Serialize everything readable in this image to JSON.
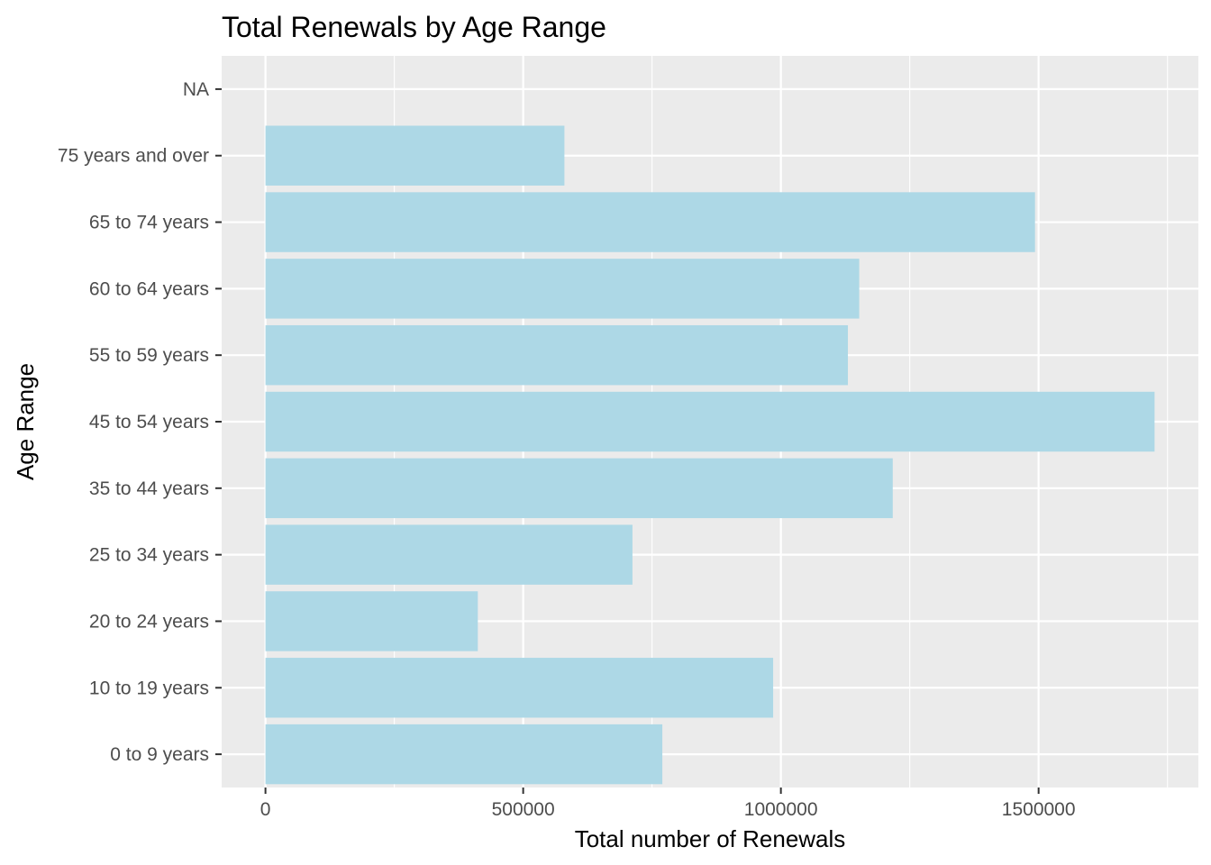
{
  "chart_data": {
    "type": "bar",
    "orientation": "horizontal",
    "title": "Total Renewals by Age Range",
    "xlabel": "Total number of Renewals",
    "ylabel": "Age Range",
    "categories": [
      "0 to 9 years",
      "10 to 19 years",
      "20 to 24 years",
      "25 to 34 years",
      "35 to 44 years",
      "45 to 54 years",
      "55 to 59 years",
      "60 to 64 years",
      "65 to 74 years",
      "75 years and over",
      "NA"
    ],
    "values": [
      770000,
      985000,
      412000,
      712000,
      1217000,
      1725000,
      1130000,
      1152000,
      1493000,
      580000,
      null
    ],
    "xlim": [
      -85000,
      1810000
    ],
    "xticks": [
      0,
      500000,
      1000000,
      1500000
    ],
    "xtick_labels": [
      "0",
      "500000",
      "1000000",
      "1500000"
    ],
    "grid": true,
    "legend": "none",
    "colors": {
      "bar": "#add8e6",
      "panel": "#ebebeb",
      "grid": "#ffffff",
      "tick_text": "#4d4d4d",
      "title_text": "#000000"
    }
  }
}
